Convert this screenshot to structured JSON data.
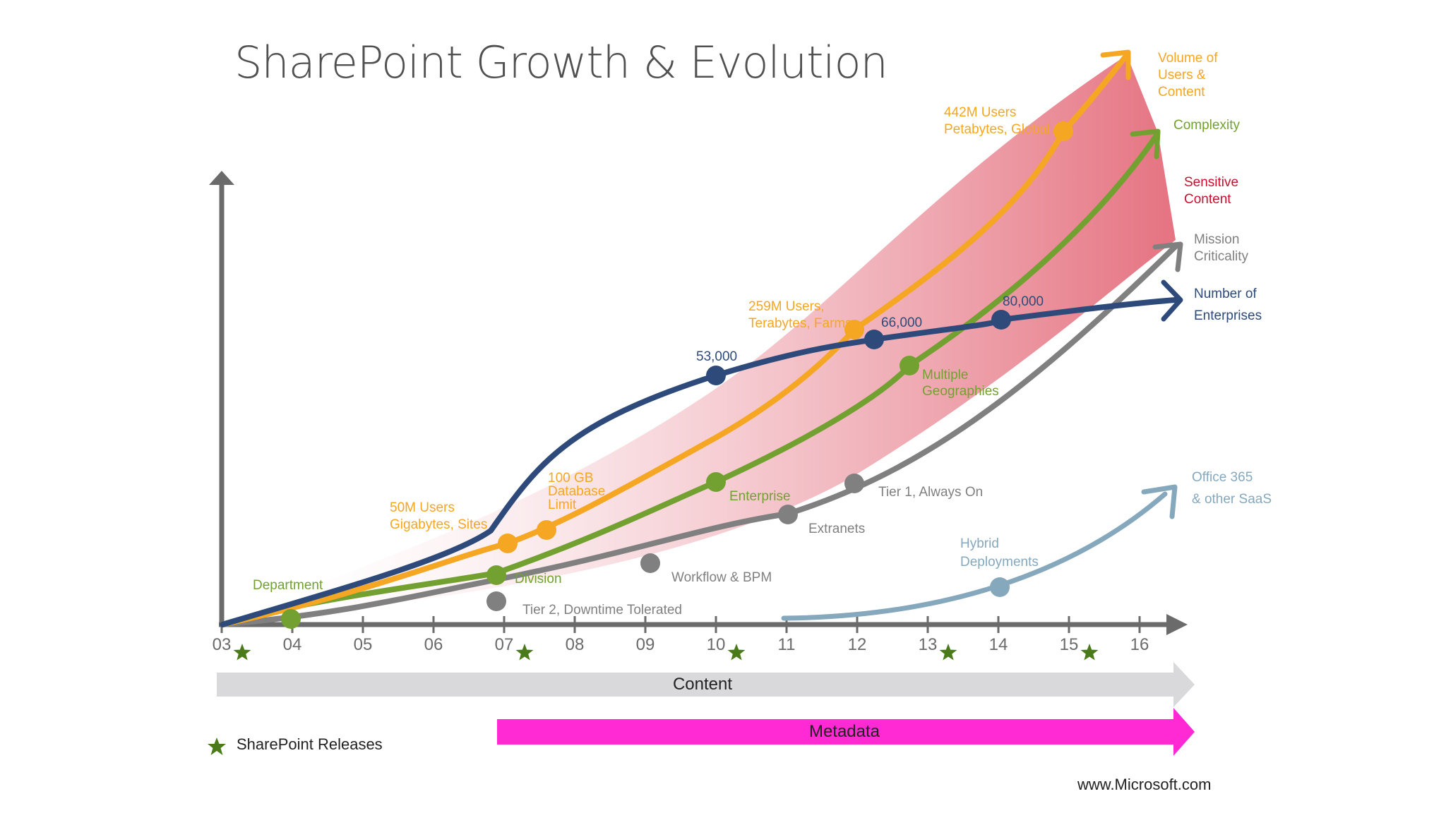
{
  "title": "SharePoint Growth & Evolution",
  "footer": {
    "source": "www.Microsoft.com"
  },
  "legend": {
    "releases_label": "SharePoint Releases"
  },
  "colors": {
    "volume": "#f5a623",
    "complexity": "#73a131",
    "sensitive": "#c8102e",
    "mission": "#808080",
    "enterprises": "#2e4a7a",
    "hybrid": "#86a8bd",
    "content_bar": "#d9d9dc",
    "metadata_bar": "#ff2ad4",
    "star": "#4a7a1a",
    "axis": "#6b6b6b"
  },
  "chart_data": {
    "type": "line",
    "x": [
      "03",
      "04",
      "05",
      "06",
      "07",
      "08",
      "09",
      "10",
      "11",
      "12",
      "13",
      "14",
      "15",
      "16"
    ],
    "release_markers": [
      3.25,
      7.25,
      10.25,
      13.25,
      15.25
    ],
    "series": [
      {
        "name": "Volume of Users & Content",
        "color": "#f5a623",
        "milestones": [
          {
            "x": 7.15,
            "label": "50M Users Gigabytes, Sites"
          },
          {
            "x": 7.7,
            "label": "100 GB Database Limit"
          },
          {
            "x": 12.0,
            "label": "259M Users, Terabytes, Farms"
          },
          {
            "x": 15.0,
            "label": "442M Users Petabytes, Global"
          }
        ]
      },
      {
        "name": "Complexity",
        "color": "#73a131",
        "milestones": [
          {
            "x": 4.0,
            "label": "Department"
          },
          {
            "x": 7.0,
            "label": "Division"
          },
          {
            "x": 10.0,
            "label": "Enterprise"
          },
          {
            "x": 12.8,
            "label": "Multiple Geographies"
          }
        ]
      },
      {
        "name": "Mission Criticality",
        "color": "#808080",
        "milestones": [
          {
            "x": 7.0,
            "label": "Tier 2, Downtime Tolerated"
          },
          {
            "x": 9.0,
            "label": "Workflow & BPM"
          },
          {
            "x": 11.0,
            "label": "Extranets"
          },
          {
            "x": 12.0,
            "label": "Tier 1, Always On"
          }
        ]
      },
      {
        "name": "Number of Enterprises",
        "color": "#2e4a7a",
        "milestones": [
          {
            "x": 10.0,
            "label": "53,000"
          },
          {
            "x": 12.3,
            "label": "66,000"
          },
          {
            "x": 14.0,
            "label": "80,000"
          }
        ]
      },
      {
        "name": "Office 365 & other SaaS",
        "color": "#86a8bd",
        "milestones": [
          {
            "x": 14.0,
            "label": "Hybrid Deployments"
          }
        ]
      }
    ],
    "band": {
      "name": "Sensitive Content",
      "color": "#c8102e"
    },
    "bars": [
      {
        "name": "Content",
        "from": "03",
        "to": "16"
      },
      {
        "name": "Metadata",
        "from": "07",
        "to": "16"
      }
    ],
    "end_labels": {
      "volume": [
        "Volume of",
        "Users &",
        "Content"
      ],
      "complexity": [
        "Complexity"
      ],
      "sensitive": [
        "Sensitive",
        "Content"
      ],
      "mission": [
        "Mission",
        "Criticality"
      ],
      "enterprises": [
        "Number of",
        "Enterprises"
      ],
      "saas": [
        "Office 365",
        "& other SaaS"
      ]
    },
    "milestone_text": {
      "m50": [
        "50M Users",
        "Gigabytes, Sites"
      ],
      "m100": [
        "100 GB",
        "Database",
        "Limit"
      ],
      "m259": [
        "259M Users,",
        "Terabytes, Farms"
      ],
      "m442": [
        "442M Users",
        "Petabytes, Global"
      ],
      "department": [
        "Department"
      ],
      "division": [
        "Division"
      ],
      "enterprise": [
        "Enterprise"
      ],
      "geographies": [
        "Multiple",
        "Geographies"
      ],
      "tier2": [
        "Tier 2, Downtime Tolerated"
      ],
      "workflow": [
        "Workflow & BPM"
      ],
      "extranets": [
        "Extranets"
      ],
      "tier1": [
        "Tier 1, Always On"
      ],
      "e53": [
        "53,000"
      ],
      "e66": [
        "66,000"
      ],
      "e80": [
        "80,000"
      ],
      "hybrid": [
        "Hybrid",
        "Deployments"
      ]
    }
  }
}
